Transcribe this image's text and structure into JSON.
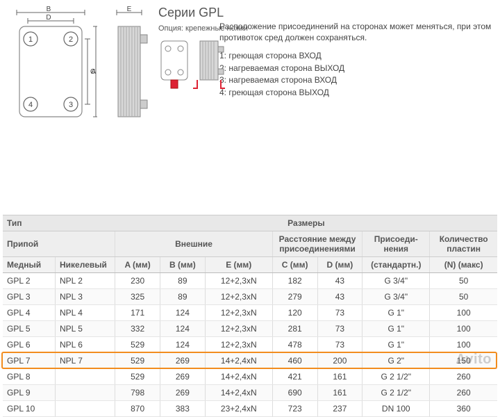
{
  "header": {
    "title": "Серии GPL",
    "option_label": "Опция: крепежные ножки",
    "note": "Расположение присоединений на сторонах может меняться, при этом противоток сред должен сохраняться.",
    "legend": [
      "1: греющая сторона ВХОД",
      "2: нагреваемая сторона ВЫХОД",
      "3: нагреваемая сторона ВХОД",
      "4: греющая сторона ВЫХОД"
    ]
  },
  "diagram": {
    "front_labels": {
      "B": "B",
      "D": "D",
      "C": "C",
      "A": "A"
    },
    "side_label": "E",
    "port_numbers": [
      "1",
      "2",
      "3",
      "4"
    ]
  },
  "table": {
    "group_headers": {
      "type": "Тип",
      "dimensions": "Размеры"
    },
    "sub_headers": {
      "solder": "Припой",
      "external": "Внешние",
      "port_distance": "Расстояние между присоеди­нениями",
      "connections": "Присоеди­нения",
      "plates": "Количество пластин"
    },
    "col_headers": {
      "copper": "Медный",
      "nickel": "Никелевый",
      "A": "A (мм)",
      "B": "B (мм)",
      "E": "E (мм)",
      "C": "C (мм)",
      "D": "D (мм)",
      "conn": "(стандартн.)",
      "N": "(N) (макс)"
    },
    "rows": [
      {
        "cu": "GPL 2",
        "ni": "NPL 2",
        "A": "230",
        "B": "89",
        "E": "12+2,3xN",
        "C": "182",
        "D": "43",
        "conn": "G 3/4\"",
        "N": "50"
      },
      {
        "cu": "GPL 3",
        "ni": "NPL 3",
        "A": "325",
        "B": "89",
        "E": "12+2,3xN",
        "C": "279",
        "D": "43",
        "conn": "G 3/4\"",
        "N": "50"
      },
      {
        "cu": "GPL 4",
        "ni": "NPL 4",
        "A": "171",
        "B": "124",
        "E": "12+2,3xN",
        "C": "120",
        "D": "73",
        "conn": "G 1\"",
        "N": "100"
      },
      {
        "cu": "GPL 5",
        "ni": "NPL 5",
        "A": "332",
        "B": "124",
        "E": "12+2,3xN",
        "C": "281",
        "D": "73",
        "conn": "G 1\"",
        "N": "100"
      },
      {
        "cu": "GPL 6",
        "ni": "NPL 6",
        "A": "529",
        "B": "124",
        "E": "12+2,3xN",
        "C": "478",
        "D": "73",
        "conn": "G 1\"",
        "N": "100"
      },
      {
        "cu": "GPL 7",
        "ni": "NPL 7",
        "A": "529",
        "B": "269",
        "E": "14+2,4xN",
        "C": "460",
        "D": "200",
        "conn": "G 2\"",
        "N": "150"
      },
      {
        "cu": "GPL 8",
        "ni": "",
        "A": "529",
        "B": "269",
        "E": "14+2,4xN",
        "C": "421",
        "D": "161",
        "conn": "G 2 1/2\"",
        "N": "260"
      },
      {
        "cu": "GPL 9",
        "ni": "",
        "A": "798",
        "B": "269",
        "E": "14+2,4xN",
        "C": "690",
        "D": "161",
        "conn": "G 2 1/2\"",
        "N": "260"
      },
      {
        "cu": "GPL 10",
        "ni": "",
        "A": "870",
        "B": "383",
        "E": "23+2,4xN",
        "C": "723",
        "D": "237",
        "conn": "DN 100",
        "N": "360"
      }
    ],
    "highlight_index": 5,
    "highlight_color": "#f28c1e"
  },
  "watermark": "Avito",
  "style": {
    "header_bg": "#e8e8e8",
    "sub_bg": "#eee",
    "col_bg": "#f2f2f2",
    "row_border": "#e5e5e5",
    "font_size": 12
  }
}
